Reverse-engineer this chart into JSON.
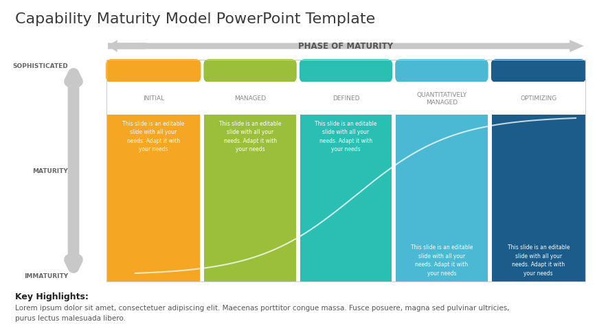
{
  "title": "Capability Maturity Model PowerPoint Template",
  "title_color": "#3a3a3a",
  "title_fontsize": 16,
  "bg_color": "#ffffff",
  "phase_label": "PHASE OF MATURITY",
  "columns": [
    {
      "label": "INITIAL",
      "color": "#F5A623"
    },
    {
      "label": "MANAGED",
      "color": "#9CBF3B"
    },
    {
      "label": "DEFINED",
      "color": "#2BBFB3"
    },
    {
      "label": "QUANTITATIVELY\nMANAGED",
      "color": "#4BB8D4"
    },
    {
      "label": "OPTIMIZING",
      "color": "#1B5C8A"
    }
  ],
  "body_text": "This slide is an editable\nslide with all your\nneeds. Adapt it with\nyour needs",
  "key_highlights_label": "Key Highlights:",
  "lorem_text": "Lorem ipsum dolor sit amet, consectetuer adipiscing elit. Maecenas porttitor congue massa. Fusce posuere, magna sed pulvinar ultricies,\npurus lectus malesuada libero.",
  "label_color": "#888888",
  "arrow_color": "#c8c8c8",
  "arrow_color_dark": "#555555"
}
